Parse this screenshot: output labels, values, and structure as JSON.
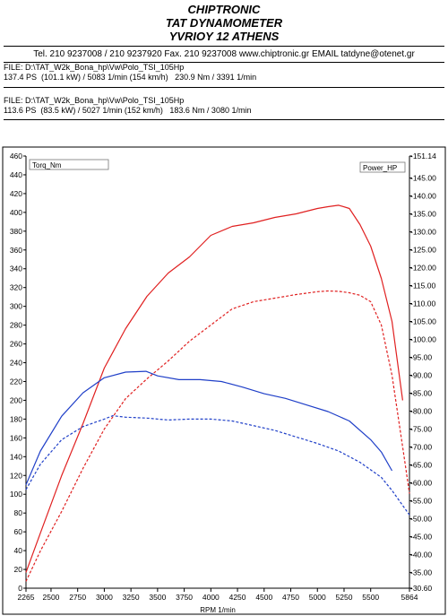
{
  "header": {
    "company": "CHIPTRONIC",
    "title": "TAT DYNAMOMETER",
    "address": "YVRIOY 12 ATHENS",
    "contact": "Tel. 210 9237008 / 210 9237920  Fax. 210 9237008 www.chiptronic.gr EMAIL tatdyne@otenet.gr"
  },
  "runs": [
    {
      "file": "FILE: D:\\TAT_W2k_Bona_hp\\Vw\\Polo_TSI_105Hp",
      "summary": "137.4 PS  (101.1 kW) / 5083 1/min (154 km/h)   230.9 Nm / 3391 1/min"
    },
    {
      "file": "FILE: D:\\TAT_W2k_Bona_hp\\Vw\\Polo_TSI_105Hp",
      "summary": "113.6 PS  (83.5 kW) / 5027 1/min (152 km/h)   183.6 Nm / 3080 1/min"
    }
  ],
  "chart_data": {
    "type": "line",
    "xlabel": "RPM  1/min",
    "xlim": [
      2265,
      5864
    ],
    "x_ticks": [
      "2265",
      "2500",
      "2750",
      "3000",
      "3250",
      "3500",
      "3750",
      "4000",
      "4250",
      "4500",
      "4750",
      "5000",
      "5250",
      "5500",
      "5864"
    ],
    "x_tick_values": [
      2265,
      2500,
      2750,
      3000,
      3250,
      3500,
      3750,
      4000,
      4250,
      4500,
      4750,
      5000,
      5250,
      5500,
      5864
    ],
    "left_axis": {
      "label": "Torq_Nm",
      "ylim": [
        0,
        460
      ],
      "ticks": [
        "0",
        "20",
        "40",
        "60",
        "80",
        "100",
        "120",
        "140",
        "160",
        "180",
        "200",
        "220",
        "240",
        "260",
        "280",
        "300",
        "320",
        "340",
        "360",
        "380",
        "400",
        "420",
        "440",
        "460"
      ],
      "tick_values": [
        0,
        20,
        40,
        60,
        80,
        100,
        120,
        140,
        160,
        180,
        200,
        220,
        240,
        260,
        280,
        300,
        320,
        340,
        360,
        380,
        400,
        420,
        440,
        460
      ]
    },
    "right_axis": {
      "label": "Power_HP",
      "ylim": [
        30.6,
        151.14
      ],
      "ticks": [
        "-151.14",
        "-145.00",
        "-140.00",
        "-135.00",
        "-130.00",
        "-125.00",
        "-120.00",
        "-115.00",
        "-110.00",
        "-105.00",
        "-100.00",
        "-95.00",
        "-90.00",
        "-85.00",
        "-80.00",
        "-75.00",
        "-70.00",
        "-65.00",
        "-60.00",
        "-55.00",
        "-50.00",
        "-45.00",
        "-40.00",
        "-35.00",
        "-30.60"
      ],
      "tick_values": [
        151.14,
        145,
        140,
        135,
        130,
        125,
        120,
        115,
        110,
        105,
        100,
        95,
        90,
        85,
        80,
        75,
        70,
        65,
        60,
        55,
        50,
        45,
        40,
        35,
        30.6
      ]
    },
    "grid": false,
    "legend": "none",
    "series": [
      {
        "name": "",
        "axis": "right",
        "style": "solid",
        "color": "#e02020",
        "x": [
          2265,
          2400,
          2600,
          2800,
          3000,
          3200,
          3400,
          3600,
          3800,
          4000,
          4200,
          4400,
          4600,
          4800,
          5000,
          5100,
          5200,
          5300,
          5400,
          5500,
          5600,
          5700,
          5800
        ],
        "y": [
          35.0,
          46.0,
          62.0,
          76.5,
          92.0,
          103.0,
          112.0,
          118.5,
          123.0,
          129.0,
          131.5,
          132.5,
          134.0,
          135.0,
          136.5,
          137.0,
          137.4,
          136.5,
          132.0,
          126.0,
          117.0,
          105.0,
          83.0
        ]
      },
      {
        "name": "",
        "axis": "right",
        "style": "dashed",
        "color": "#e02020",
        "x": [
          2265,
          2400,
          2600,
          2800,
          3000,
          3200,
          3400,
          3600,
          3800,
          4000,
          4200,
          4400,
          4600,
          4800,
          5000,
          5100,
          5200,
          5300,
          5400,
          5500,
          5600,
          5700,
          5800,
          5864
        ],
        "y": [
          32.5,
          41.0,
          52.0,
          64.0,
          75.0,
          83.5,
          89.0,
          94.0,
          99.5,
          104.0,
          108.5,
          110.5,
          111.5,
          112.5,
          113.3,
          113.5,
          113.4,
          113.0,
          112.3,
          110.5,
          104.0,
          90.0,
          70.0,
          57.0
        ]
      },
      {
        "name": "",
        "axis": "left",
        "style": "solid",
        "color": "#1f3fc8",
        "x": [
          2265,
          2400,
          2600,
          2800,
          3000,
          3200,
          3391,
          3500,
          3700,
          3900,
          4100,
          4300,
          4500,
          4700,
          4900,
          5100,
          5300,
          5500,
          5600,
          5700
        ],
        "y": [
          110,
          146,
          183,
          208,
          224,
          230,
          230.9,
          226,
          222,
          222,
          220,
          214,
          207,
          202,
          195,
          188,
          178,
          158,
          145,
          125
        ]
      },
      {
        "name": "",
        "axis": "left",
        "style": "dashed",
        "color": "#1f3fc8",
        "x": [
          2265,
          2400,
          2600,
          2800,
          3000,
          3080,
          3200,
          3400,
          3600,
          3800,
          4000,
          4200,
          4400,
          4600,
          4800,
          5000,
          5200,
          5400,
          5600,
          5700,
          5864
        ],
        "y": [
          105,
          132,
          158,
          172,
          180,
          183.6,
          182,
          181,
          179,
          180,
          180,
          178,
          173,
          168,
          161,
          154,
          146,
          134,
          118,
          104,
          78
        ]
      }
    ]
  }
}
